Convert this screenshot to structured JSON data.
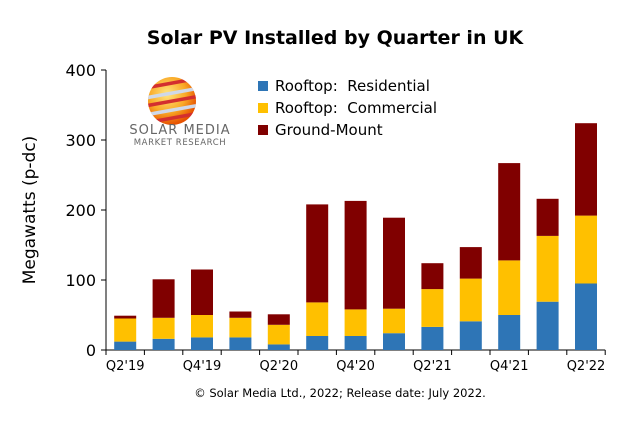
{
  "chart_data": {
    "type": "bar",
    "stacked": true,
    "title": "Solar PV Installed by Quarter in UK",
    "ylabel": "Megawatts (p-dc)",
    "xlabel": "",
    "ylim": [
      0,
      400
    ],
    "yticks": [
      0,
      100,
      200,
      300,
      400
    ],
    "grid": false,
    "legend_position": "top-center",
    "categories": [
      "Q2'19",
      "Q3'19",
      "Q4'19",
      "Q1'20",
      "Q2'20",
      "Q3'20",
      "Q4'20",
      "Q1'21",
      "Q2'21",
      "Q3'21",
      "Q4'21",
      "Q1'22",
      "Q2'22"
    ],
    "xtick_labels_shown": [
      "Q2'19",
      "",
      "Q4'19",
      "",
      "Q2'20",
      "",
      "Q4'20",
      "",
      "Q2'21",
      "",
      "Q4'21",
      "",
      "Q2'22"
    ],
    "series": [
      {
        "name": "Rooftop:  Residential",
        "color": "#2E75B6",
        "values": [
          12,
          16,
          18,
          18,
          8,
          20,
          20,
          24,
          33,
          41,
          50,
          69,
          95
        ]
      },
      {
        "name": "Rooftop:  Commercial",
        "color": "#FFC000",
        "values": [
          33,
          30,
          32,
          28,
          28,
          48,
          38,
          35,
          54,
          61,
          78,
          94,
          97
        ]
      },
      {
        "name": "Ground-Mount",
        "color": "#800000",
        "values": [
          4,
          55,
          65,
          9,
          15,
          140,
          155,
          130,
          37,
          45,
          139,
          53,
          132
        ]
      }
    ],
    "footnote": "© Solar Media Ltd., 2022; Release date: July 2022.",
    "logo": {
      "line1": "SOLAR MEDIA",
      "line2": "MARKET RESEARCH"
    }
  }
}
